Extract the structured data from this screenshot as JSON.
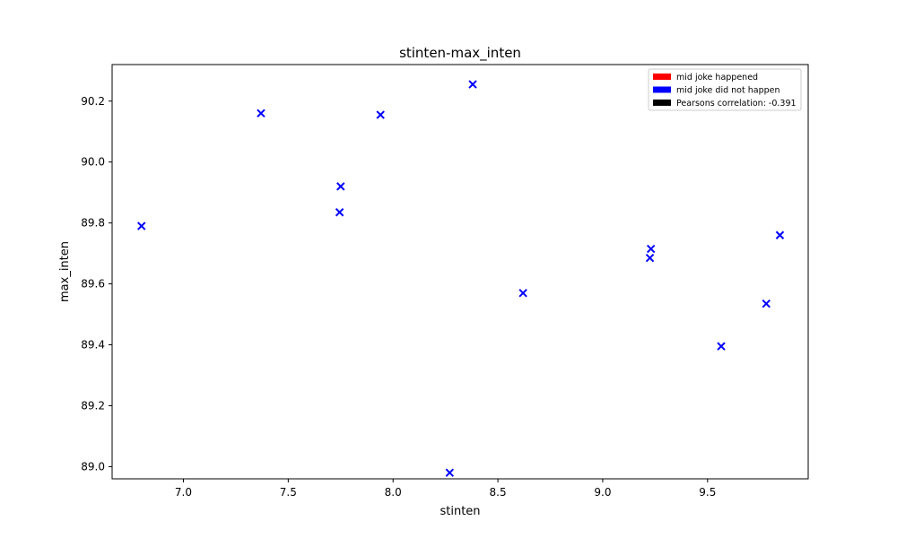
{
  "chart_data": {
    "type": "scatter",
    "title": "stinten-max_inten",
    "xlabel": "stinten",
    "ylabel": "max_inten",
    "xlim": [
      6.66,
      9.98
    ],
    "ylim": [
      88.96,
      90.32
    ],
    "xticks": [
      7.0,
      7.5,
      8.0,
      8.5,
      9.0,
      9.5
    ],
    "xtick_labels": [
      "7.0",
      "7.5",
      "8.0",
      "8.5",
      "9.0",
      "9.5"
    ],
    "yticks": [
      89.0,
      89.2,
      89.4,
      89.6,
      89.8,
      90.0,
      90.2
    ],
    "ytick_labels": [
      "89.0",
      "89.2",
      "89.4",
      "89.6",
      "89.8",
      "90.0",
      "90.2"
    ],
    "grid": false,
    "legend_position": "top-right",
    "marker": "x",
    "series": [
      {
        "color": "#0000ff",
        "points": [
          {
            "x": 6.8,
            "y": 89.79
          },
          {
            "x": 7.37,
            "y": 90.16
          },
          {
            "x": 7.75,
            "y": 89.92
          },
          {
            "x": 7.745,
            "y": 89.835
          },
          {
            "x": 7.94,
            "y": 90.155
          },
          {
            "x": 8.38,
            "y": 90.255
          },
          {
            "x": 8.27,
            "y": 88.98
          },
          {
            "x": 8.62,
            "y": 89.57
          },
          {
            "x": 9.23,
            "y": 89.715
          },
          {
            "x": 9.225,
            "y": 89.685
          },
          {
            "x": 9.565,
            "y": 89.395
          },
          {
            "x": 9.78,
            "y": 89.535
          },
          {
            "x": 9.845,
            "y": 89.76
          }
        ]
      }
    ],
    "legend": [
      {
        "label": "mid joke happened",
        "color": "#ff0000"
      },
      {
        "label": "mid joke did not happen",
        "color": "#0000ff"
      },
      {
        "label": "Pearsons correlation: -0.391",
        "color": "#000000"
      }
    ]
  }
}
